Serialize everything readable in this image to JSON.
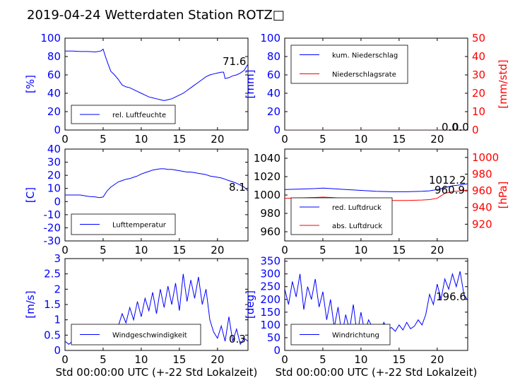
{
  "title": "2019-04-24 Wetterdaten Station ROTZ□",
  "colors": {
    "primary": "#0000ff",
    "secondary": "#ff0000"
  },
  "chart_data": [
    {
      "id": "humidity",
      "type": "line",
      "ylabel": "[%]",
      "ylim": [
        0,
        100
      ],
      "yticks": [
        0,
        20,
        40,
        60,
        80,
        100
      ],
      "xlim": [
        0,
        24
      ],
      "xticks": [
        0,
        5,
        10,
        15,
        20
      ],
      "legend": "lower-left",
      "annotations": [
        "71.6"
      ],
      "series": [
        {
          "name": "rel. Luftfeuchte",
          "axis": "left",
          "color": "#0000ff",
          "x": [
            0,
            1,
            2,
            3,
            4,
            4.7,
            5,
            5.3,
            5.6,
            6,
            6.5,
            7,
            7.5,
            8,
            8.5,
            9,
            9.5,
            10,
            10.5,
            11,
            11.5,
            12,
            12.5,
            13,
            13.5,
            14,
            14.5,
            15,
            15.5,
            16,
            16.5,
            17,
            17.5,
            18,
            18.5,
            19,
            19.5,
            20,
            20.5,
            20.8,
            21,
            21.5,
            22,
            22.5,
            23,
            23.5,
            24
          ],
          "y": [
            86,
            86,
            85.5,
            85.5,
            85,
            86,
            88,
            80,
            73,
            64,
            60,
            55,
            49,
            47,
            46,
            44,
            42,
            40,
            38,
            36,
            35,
            34,
            33,
            32,
            33,
            34,
            36,
            38,
            40,
            43,
            46,
            49,
            52,
            55,
            58,
            60,
            61,
            62,
            63,
            63,
            56,
            57,
            59,
            60,
            62,
            65,
            71.6
          ]
        }
      ]
    },
    {
      "id": "precipitation",
      "type": "line",
      "ylabel": "[mm]",
      "ylabel_right": "[mm/std]",
      "ylim": [
        0,
        100
      ],
      "yticks": [
        0,
        20,
        40,
        60,
        80,
        100
      ],
      "ylim_right": [
        0,
        50
      ],
      "yticks_right": [
        0,
        10,
        20,
        30,
        40,
        50
      ],
      "xlim": [
        0,
        24
      ],
      "xticks": [
        0,
        5,
        10,
        15,
        20
      ],
      "legend": "upper-left",
      "annotations": [
        "0.0",
        "0.0"
      ],
      "series": [
        {
          "name": "kum. Niederschlag",
          "axis": "left",
          "color": "#0000ff",
          "x": [
            0,
            24
          ],
          "y": [
            0,
            0
          ]
        },
        {
          "name": "Niederschlagsrate",
          "axis": "right",
          "color": "#ff0000",
          "x": [
            0,
            24
          ],
          "y": [
            0,
            0
          ]
        }
      ]
    },
    {
      "id": "temperature",
      "type": "line",
      "ylabel": "[C]",
      "ylim": [
        -30,
        40
      ],
      "yticks": [
        -30,
        -20,
        -10,
        0,
        10,
        20,
        30,
        40
      ],
      "xlim": [
        0,
        24
      ],
      "xticks": [
        0,
        5,
        10,
        15,
        20
      ],
      "legend": "lower-left",
      "annotations": [
        "8.1"
      ],
      "series": [
        {
          "name": "Lufttemperatur",
          "axis": "left",
          "color": "#0000ff",
          "x": [
            0,
            1,
            2,
            3,
            4,
            4.5,
            5,
            5.5,
            6,
            6.5,
            7,
            7.5,
            8,
            8.5,
            9,
            9.5,
            10,
            10.5,
            11,
            11.5,
            12,
            12.5,
            13,
            13.5,
            14,
            14.5,
            15,
            15.5,
            16,
            16.5,
            17,
            17.5,
            18,
            18.5,
            19,
            19.5,
            20,
            20.5,
            21,
            21.5,
            22,
            22.5,
            23,
            23.5,
            24
          ],
          "y": [
            5,
            5,
            5,
            4,
            3.5,
            3,
            3.5,
            8,
            11,
            13,
            15,
            16,
            17,
            17.5,
            18.5,
            19.5,
            21,
            22,
            23,
            24,
            24.5,
            25,
            25,
            24.5,
            24.5,
            24,
            23.5,
            23,
            22.5,
            22.5,
            22,
            21.5,
            21,
            20.5,
            19.5,
            19,
            18.5,
            18,
            17,
            16,
            15,
            14,
            12.5,
            11,
            8.1
          ]
        }
      ]
    },
    {
      "id": "pressure",
      "type": "line",
      "ylabel_right": "[hPa]",
      "ylim": [
        950,
        1050
      ],
      "yticks": [
        960,
        980,
        1000,
        1020,
        1040
      ],
      "ylim_right": [
        900,
        1010
      ],
      "yticks_right": [
        920,
        940,
        960,
        980,
        1000
      ],
      "xlim": [
        0,
        24
      ],
      "xticks": [
        0,
        5,
        10,
        15,
        20
      ],
      "legend": "lower-left",
      "annotations": [
        "1012.2",
        "960.9"
      ],
      "series": [
        {
          "name": "red. Luftdruck",
          "axis": "left",
          "color": "#0000ff",
          "x": [
            0,
            2,
            4,
            5,
            6,
            8,
            10,
            12,
            14,
            16,
            18,
            19,
            20,
            21,
            22,
            23,
            24
          ],
          "y": [
            1006,
            1006.5,
            1007,
            1007.5,
            1007,
            1006,
            1005,
            1004,
            1003.5,
            1003.5,
            1004,
            1004.5,
            1006,
            1008,
            1010,
            1011,
            1012.2
          ]
        },
        {
          "name": "abs. Luftdruck",
          "axis": "right",
          "color": "#ff0000",
          "x": [
            0,
            2,
            4,
            5,
            6,
            8,
            10,
            12,
            14,
            16,
            18,
            19,
            20,
            20.5,
            21,
            22,
            23,
            24
          ],
          "y": [
            951,
            951.5,
            952,
            952.5,
            952,
            951,
            950,
            949,
            948.5,
            948.5,
            949,
            949.5,
            951,
            954,
            957,
            959,
            960,
            960.9
          ]
        }
      ]
    },
    {
      "id": "windspeed",
      "type": "line",
      "ylabel": "[m/s]",
      "ylim": [
        0,
        3
      ],
      "yticks": [
        0,
        0.5,
        1,
        1.5,
        2,
        2.5,
        3
      ],
      "xlim": [
        0,
        24
      ],
      "xticks": [
        0,
        5,
        10,
        15,
        20
      ],
      "xlabel": "Std 00:00:00 UTC (+-22 Std Lokalzeit)",
      "legend": "lower-left",
      "annotations": [
        "0.3"
      ],
      "series": [
        {
          "name": "Windgeschwindigkeit",
          "axis": "left",
          "color": "#0000ff",
          "x": [
            0,
            0.5,
            1,
            1.5,
            2,
            2.5,
            3,
            3.5,
            4,
            4.5,
            5,
            5.5,
            6,
            6.5,
            7,
            7.5,
            8,
            8.5,
            9,
            9.5,
            10,
            10.5,
            11,
            11.5,
            12,
            12.5,
            13,
            13.5,
            14,
            14.5,
            15,
            15.5,
            16,
            16.5,
            17,
            17.5,
            18,
            18.5,
            19,
            19.5,
            20,
            20.5,
            21,
            21.5,
            22,
            22.5,
            23,
            23.5,
            24
          ],
          "y": [
            0.3,
            0.2,
            0.3,
            0.2,
            0.3,
            0.2,
            0.2,
            0.3,
            0.2,
            0.2,
            0.3,
            0.2,
            0.3,
            0.5,
            0.8,
            1.2,
            0.9,
            1.4,
            1.0,
            1.6,
            1.1,
            1.7,
            1.3,
            1.9,
            1.2,
            2.0,
            1.4,
            2.1,
            1.5,
            2.2,
            1.3,
            2.5,
            1.6,
            2.3,
            1.7,
            2.4,
            1.5,
            2.0,
            1.0,
            0.6,
            0.4,
            0.8,
            0.3,
            1.1,
            0.3,
            0.7,
            0.2,
            0.4,
            0.3
          ]
        }
      ]
    },
    {
      "id": "winddirection",
      "type": "line",
      "ylabel": "[deg]",
      "ylim": [
        0,
        360
      ],
      "yticks": [
        0,
        50,
        100,
        150,
        200,
        250,
        300,
        350
      ],
      "xlim": [
        0,
        24
      ],
      "xticks": [
        0,
        5,
        10,
        15,
        20
      ],
      "xlabel": "Std 00:00:00 UTC (+-22 Std Lokalzeit)",
      "legend": "lower-left",
      "annotations": [
        "196.6"
      ],
      "series": [
        {
          "name": "Windrichtung",
          "axis": "left",
          "color": "#0000ff",
          "x": [
            0,
            0.5,
            1,
            1.5,
            2,
            2.5,
            3,
            3.5,
            4,
            4.5,
            5,
            5.5,
            6,
            6.5,
            7,
            7.5,
            8,
            8.5,
            9,
            9.5,
            10,
            10.5,
            11,
            11.5,
            12,
            12.5,
            13,
            13.5,
            14,
            14.5,
            15,
            15.5,
            16,
            16.5,
            17,
            17.5,
            18,
            18.5,
            19,
            19.5,
            20,
            20.5,
            21,
            21.5,
            22,
            22.5,
            23,
            23.5,
            24
          ],
          "y": [
            240,
            180,
            270,
            210,
            300,
            160,
            250,
            200,
            280,
            170,
            230,
            120,
            200,
            90,
            170,
            60,
            140,
            80,
            180,
            60,
            150,
            70,
            120,
            90,
            100,
            70,
            110,
            80,
            90,
            75,
            100,
            80,
            110,
            85,
            95,
            120,
            100,
            140,
            220,
            180,
            260,
            200,
            280,
            240,
            300,
            250,
            310,
            220,
            196.6
          ]
        }
      ]
    }
  ]
}
